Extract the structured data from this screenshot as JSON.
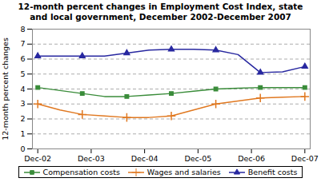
{
  "chart_data": {
    "type": "line",
    "title": "12-month percent changes in Employment Cost Index, state\nand local government, December 2002-December 2007",
    "ylabel": "12-month percent changes",
    "x": [
      0,
      0.4166666666666667,
      0.8333333333333334,
      1.25,
      1.6666666666666667,
      2.0833333333333335,
      2.5,
      2.916666666666667,
      3.3333333333333335,
      3.75,
      4.166666666666667,
      4.583333333333334,
      5
    ],
    "xlim": [
      -0.1,
      5.1
    ],
    "xticks": [
      {
        "value": 0,
        "label": "Dec-02"
      },
      {
        "value": 1,
        "label": "Dec-03"
      },
      {
        "value": 2,
        "label": "Dec-04"
      },
      {
        "value": 3,
        "label": "Dec-05"
      },
      {
        "value": 4,
        "label": "Dec-06"
      },
      {
        "value": 5,
        "label": "Dec-07"
      }
    ],
    "ylim": [
      0,
      8
    ],
    "yticks": [
      0,
      1,
      2,
      3,
      4,
      5,
      6,
      7,
      8
    ],
    "grid": true,
    "legend": "bottom",
    "series": [
      {
        "name": "Compensation costs",
        "color": "#3a8c3a",
        "marker": "square",
        "values": [
          4.1,
          3.9,
          3.7,
          3.5,
          3.5,
          3.6,
          3.7,
          3.85,
          4.0,
          4.05,
          4.1,
          4.1,
          4.1
        ]
      },
      {
        "name": "Wages and salaries",
        "color": "#e07820",
        "marker": "plus",
        "values": [
          3.0,
          2.6,
          2.3,
          2.2,
          2.1,
          2.1,
          2.2,
          2.6,
          3.0,
          3.2,
          3.4,
          3.45,
          3.5
        ]
      },
      {
        "name": "Benefit costs",
        "color": "#2828a0",
        "marker": "triangle",
        "values": [
          6.2,
          6.2,
          6.2,
          6.2,
          6.4,
          6.6,
          6.65,
          6.65,
          6.6,
          6.3,
          5.1,
          5.15,
          5.5
        ]
      }
    ]
  }
}
